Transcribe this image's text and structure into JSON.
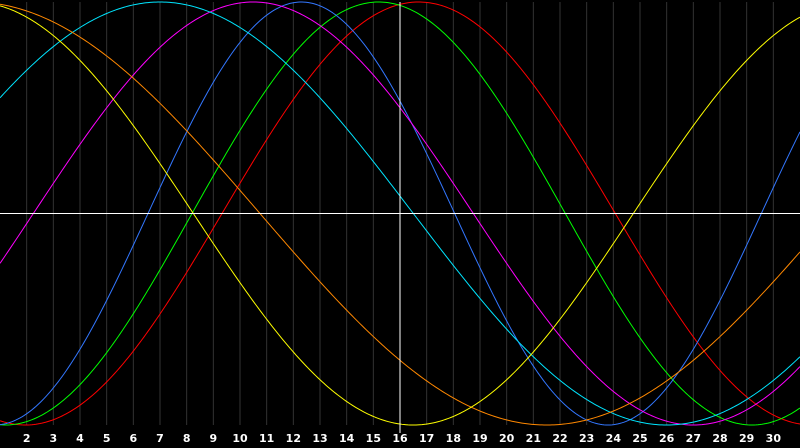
{
  "chart_data": {
    "type": "line",
    "x_ticks": [
      2,
      3,
      4,
      5,
      6,
      7,
      8,
      9,
      10,
      11,
      12,
      13,
      14,
      15,
      16,
      17,
      18,
      19,
      20,
      21,
      22,
      23,
      24,
      25,
      26,
      27,
      28,
      29,
      30
    ],
    "xlim": [
      1,
      31
    ],
    "ylim": [
      -1,
      1
    ],
    "grid": true,
    "crosshair": {
      "x": 16,
      "y": 0
    },
    "series": [
      {
        "color": "#ff0000",
        "amplitude": 1,
        "period": 29.5,
        "peak_x": 16.7
      },
      {
        "color": "#00ff00",
        "amplitude": 1,
        "period": 28.0,
        "peak_x": 15.2
      },
      {
        "color": "#3377ff",
        "amplitude": 1,
        "period": 23.0,
        "peak_x": 12.3
      },
      {
        "color": "#ff00ff",
        "amplitude": 1,
        "period": 33.0,
        "peak_x": 10.5
      },
      {
        "color": "#00e5ff",
        "amplitude": 1,
        "period": 38.0,
        "peak_x": 7.0
      },
      {
        "color": "#ff8800",
        "amplitude": 1,
        "period": 43.0,
        "peak_x": 0.0
      },
      {
        "color": "#ffff00",
        "amplitude": 1,
        "period": 33.0,
        "peak_x": 0.0
      }
    ]
  }
}
